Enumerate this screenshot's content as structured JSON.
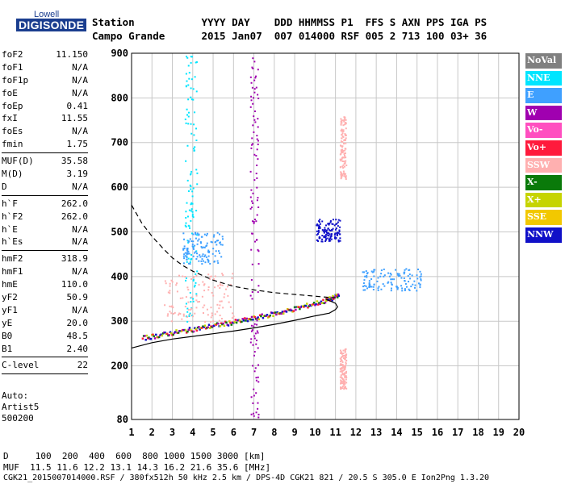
{
  "logo": {
    "line1": "Lowell",
    "line2": "DIGISONDE"
  },
  "header": {
    "row1": "Station           YYYY DAY    DDD HHMMSS P1  FFS S AXN PPS IGA PS",
    "row2": "Campo Grande      2015 Jan07  007 014000 RSF 005 2 713 100 03+ 36"
  },
  "params": [
    {
      "group": [
        {
          "label": "foF2",
          "value": "11.150"
        },
        {
          "label": "foF1",
          "value": "N/A"
        },
        {
          "label": "foF1p",
          "value": "N/A"
        },
        {
          "label": "foE",
          "value": "N/A"
        },
        {
          "label": "foEp",
          "value": "0.41"
        },
        {
          "label": "fxI",
          "value": "11.55"
        },
        {
          "label": "foEs",
          "value": "N/A"
        },
        {
          "label": "fmin",
          "value": "1.75"
        }
      ]
    },
    {
      "group": [
        {
          "label": "MUF(D)",
          "value": "35.58"
        },
        {
          "label": "M(D)",
          "value": "3.19"
        },
        {
          "label": "D",
          "value": "N/A"
        }
      ]
    },
    {
      "group": [
        {
          "label": "h`F",
          "value": "262.0"
        },
        {
          "label": "h`F2",
          "value": "262.0"
        },
        {
          "label": "h`E",
          "value": "N/A"
        },
        {
          "label": "h`Es",
          "value": "N/A"
        }
      ]
    },
    {
      "group": [
        {
          "label": "hmF2",
          "value": "318.9"
        },
        {
          "label": "hmF1",
          "value": "N/A"
        },
        {
          "label": "hmE",
          "value": "110.0"
        },
        {
          "label": "yF2",
          "value": "50.9"
        },
        {
          "label": "yF1",
          "value": "N/A"
        },
        {
          "label": "yE",
          "value": "20.0"
        },
        {
          "label": "B0",
          "value": "48.5"
        },
        {
          "label": "B1",
          "value": "2.40"
        }
      ]
    },
    {
      "group": [
        {
          "label": "C-level",
          "value": "22"
        }
      ]
    }
  ],
  "auto": {
    "line1": "Auto:",
    "line2": "Artist5",
    "line3": "500200"
  },
  "legend": [
    {
      "label": "NoVal",
      "color": "#808080"
    },
    {
      "label": "NNE",
      "color": "#00e5ff"
    },
    {
      "label": "E",
      "color": "#3fa0ff"
    },
    {
      "label": "W",
      "color": "#a000b0"
    },
    {
      "label": "Vo-",
      "color": "#ff4fc0"
    },
    {
      "label": "Vo+",
      "color": "#ff1a3c"
    },
    {
      "label": "SSW",
      "color": "#ffb0b0"
    },
    {
      "label": "X-",
      "color": "#0a7a0a"
    },
    {
      "label": "X+",
      "color": "#c6d400"
    },
    {
      "label": "SSE",
      "color": "#f2c800"
    },
    {
      "label": "NNW",
      "color": "#1010c8"
    }
  ],
  "footer": {
    "row1": "D     100  200  400  600  800 1000 1500 3000 [km]",
    "row2": "MUF  11.5 11.6 12.2 13.1 14.3 16.2 21.6 35.6 [MHz]",
    "row3": "CGK21_2015007014000.RSF / 380fx512h 50 kHz 2.5 km / DPS-4D CGK21 821 / 20.5 S 305.0 E Ion2Png 1.3.20"
  },
  "chart_data": {
    "type": "scatter",
    "xlim": [
      1,
      20
    ],
    "ylim": [
      80,
      900
    ],
    "x_ticks": [
      "1",
      "2",
      "3",
      "4",
      "5",
      "6",
      "7",
      "8",
      "9",
      "10",
      "11",
      "12",
      "13",
      "14",
      "15",
      "16",
      "17",
      "18",
      "19",
      "20"
    ],
    "y_ticks": [
      "80",
      "200",
      "300",
      "400",
      "500",
      "600",
      "700",
      "800",
      "900"
    ],
    "grid": true,
    "trace_line": {
      "x": [
        1.5,
        2.5,
        3.5,
        4.5,
        5.5,
        6.5,
        7.5,
        8.5,
        9.5,
        10.5,
        11.15
      ],
      "y": [
        264,
        272,
        280,
        288,
        296,
        304,
        314,
        324,
        336,
        348,
        360
      ]
    },
    "profile_line": {
      "x": [
        1.0,
        2.0,
        3.0,
        4.0,
        5.0,
        6.0,
        7.0,
        8.0,
        9.0,
        10.0,
        10.7,
        11.0,
        11.1,
        11.0,
        10.5
      ],
      "y": [
        240,
        252,
        260,
        266,
        272,
        278,
        285,
        293,
        302,
        312,
        318,
        326,
        332,
        340,
        350
      ]
    },
    "dashed_line": {
      "x": [
        1.0,
        1.5,
        2.0,
        2.5,
        3.0,
        3.5,
        4.0,
        5.0,
        6.0,
        7.0,
        8.0,
        9.0,
        10.0,
        11.0
      ],
      "y": [
        560,
        520,
        490,
        465,
        442,
        425,
        412,
        392,
        378,
        370,
        364,
        360,
        356,
        352
      ]
    },
    "clusters": [
      {
        "source": "NNE",
        "x_range": [
          3.6,
          4.2
        ],
        "y_range": [
          300,
          900
        ]
      },
      {
        "source": "E",
        "x_range": [
          3.5,
          5.5
        ],
        "y_range": [
          430,
          500
        ]
      },
      {
        "source": "SSW",
        "x_range": [
          2.5,
          6.0
        ],
        "y_range": [
          300,
          410
        ]
      },
      {
        "source": "W",
        "x_range": [
          6.8,
          7.2
        ],
        "y_range": [
          80,
          900
        ]
      },
      {
        "source": "E",
        "x_range": [
          12.3,
          15.2
        ],
        "y_range": [
          370,
          420
        ]
      },
      {
        "source": "NNW",
        "x_range": [
          10.0,
          11.2
        ],
        "y_range": [
          480,
          530
        ]
      },
      {
        "source": "SSW",
        "x_range": [
          11.2,
          11.5
        ],
        "y_range": [
          620,
          760
        ]
      },
      {
        "source": "SSW",
        "x_range": [
          11.2,
          11.5
        ],
        "y_range": [
          150,
          240
        ]
      }
    ]
  }
}
